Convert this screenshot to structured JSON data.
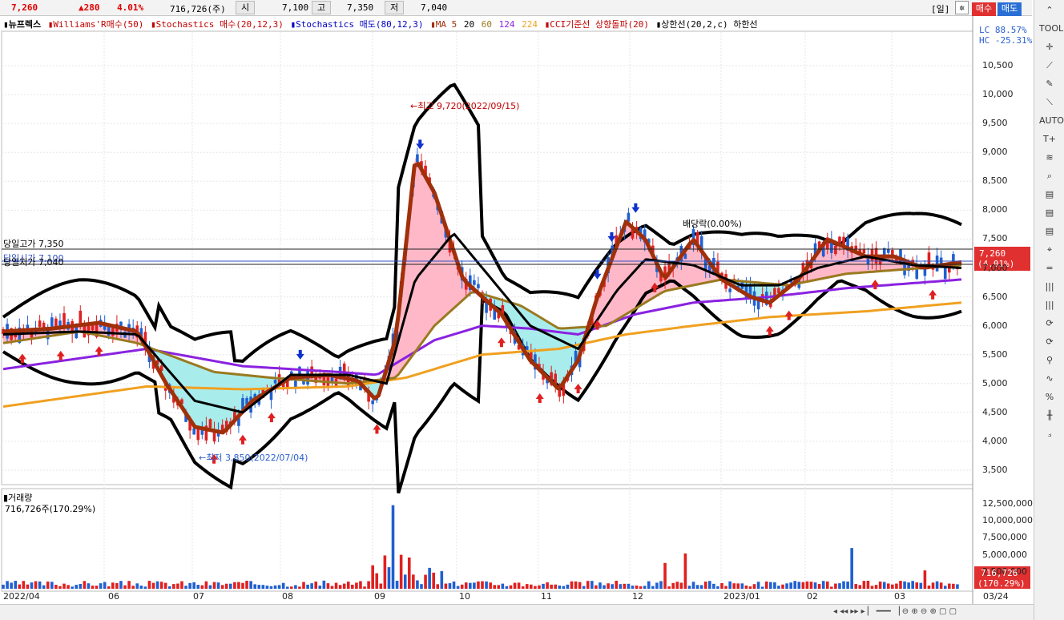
{
  "quote": {
    "price": "7,260",
    "change": "▲280",
    "change_pct": "4.01%",
    "volume": "716,726(주)",
    "open_label": "시",
    "open": "7,100",
    "high_label": "고",
    "high": "7,350",
    "low_label": "저",
    "low": "7,040"
  },
  "header_controls": {
    "period": "[일]",
    "settings_icon": "gear-icon",
    "buy_label": "매수",
    "sell_label": "매도"
  },
  "legend": {
    "stock": "▮뉴프렉스",
    "items": [
      {
        "label": "▮Williams'R매수(50)",
        "color": "#c00000"
      },
      {
        "label": "▮Stochastics 매수(20,12,3)",
        "color": "#c00000"
      },
      {
        "label": "▮Stochastics 매도(80,12,3)",
        "color": "#0000c0"
      },
      {
        "label": "▮MA 5",
        "color": "#a0300a"
      },
      {
        "label": "20",
        "color": "#000000"
      },
      {
        "label": "60",
        "color": "#9a7a20"
      },
      {
        "label": "124",
        "color": "#8a22e0"
      },
      {
        "label": "224",
        "color": "#f0a020"
      },
      {
        "label": "▮CCI기준선 상향돌파(20)",
        "color": "#c00000"
      },
      {
        "label": "▮상한선(20,2,c) 하한선",
        "color": "#000000"
      }
    ]
  },
  "price_panel": {
    "lc": "LC  88.57%",
    "hc": "HC -25.31%",
    "current_price": "7,260",
    "current_pct": "(4.01%)",
    "day_high_label": "당일고가 7,350",
    "day_open_label": "당일시가 7,100",
    "day_low_label": "당일저가 7,040",
    "max_annotation": "←최고 9,720(2022/09/15)",
    "min_annotation": "←최저 3,850(2022/07/04)",
    "dividend_annotation": "배당락(0.00%)",
    "y_ticks": [
      "10,500",
      "10,000",
      "9,500",
      "9,000",
      "8,500",
      "8,000",
      "7,500",
      "7,000",
      "6,500",
      "6,000",
      "5,500",
      "5,000",
      "4,500",
      "4,000",
      "3,500"
    ]
  },
  "volume_panel": {
    "title": "▮거래량",
    "value_label": "716,726주(170.29%)",
    "current_volume": "716,726",
    "current_pct": "(170.29%)",
    "y_ticks": [
      "12,500,000",
      "10,000,000",
      "7,500,000",
      "5,000,000",
      "2,500,000"
    ]
  },
  "x_axis": {
    "labels": [
      "2022/04",
      "06",
      "07",
      "08",
      "09",
      "10",
      "11",
      "12",
      "2023/01",
      "02",
      "03"
    ],
    "last_date": "03/24"
  },
  "toolbar": {
    "tools": [
      "chevron-up-icon",
      "TOOL",
      "crosshair-icon",
      "line-tool-icon",
      "pencil-icon",
      "ruler-icon",
      "AUTO",
      "T+",
      "fibonacci-icon",
      "search-icon",
      "chart-icon",
      "chart-icon",
      "chart-icon",
      "pin-icon",
      "=",
      "|||",
      "|||",
      "refresh-icon",
      "refresh-icon",
      "zoom-icon",
      "wave-icon",
      "%",
      "candle-icon",
      "fan-icon"
    ]
  },
  "chart_data": {
    "type": "line",
    "title": "",
    "ylim": [
      3300,
      10900
    ],
    "series": [
      {
        "name": "MA 5",
        "color": "#a0300a",
        "points": [
          [
            0,
            5900
          ],
          [
            0.05,
            5950
          ],
          [
            0.1,
            6050
          ],
          [
            0.14,
            5900
          ],
          [
            0.17,
            5000
          ],
          [
            0.2,
            4250
          ],
          [
            0.23,
            4150
          ],
          [
            0.26,
            4700
          ],
          [
            0.3,
            5100
          ],
          [
            0.34,
            5150
          ],
          [
            0.37,
            5050
          ],
          [
            0.39,
            4700
          ],
          [
            0.41,
            5800
          ],
          [
            0.43,
            8900
          ],
          [
            0.45,
            8300
          ],
          [
            0.48,
            6800
          ],
          [
            0.52,
            6200
          ],
          [
            0.55,
            5400
          ],
          [
            0.58,
            4900
          ],
          [
            0.6,
            5400
          ],
          [
            0.62,
            6500
          ],
          [
            0.65,
            7800
          ],
          [
            0.67,
            7500
          ],
          [
            0.69,
            6800
          ],
          [
            0.72,
            7500
          ],
          [
            0.75,
            6800
          ],
          [
            0.78,
            6500
          ],
          [
            0.8,
            6400
          ],
          [
            0.83,
            6800
          ],
          [
            0.86,
            7500
          ],
          [
            0.9,
            7200
          ],
          [
            0.93,
            7200
          ],
          [
            0.96,
            7000
          ],
          [
            1,
            7100
          ]
        ]
      },
      {
        "name": "20",
        "color": "#000000",
        "points": [
          [
            0,
            5850
          ],
          [
            0.08,
            5900
          ],
          [
            0.14,
            5850
          ],
          [
            0.2,
            4700
          ],
          [
            0.25,
            4500
          ],
          [
            0.3,
            5150
          ],
          [
            0.36,
            5150
          ],
          [
            0.4,
            5000
          ],
          [
            0.43,
            6800
          ],
          [
            0.47,
            7600
          ],
          [
            0.5,
            7000
          ],
          [
            0.55,
            6000
          ],
          [
            0.6,
            5600
          ],
          [
            0.64,
            6600
          ],
          [
            0.67,
            7150
          ],
          [
            0.72,
            7050
          ],
          [
            0.77,
            6700
          ],
          [
            0.81,
            6700
          ],
          [
            0.85,
            7000
          ],
          [
            0.9,
            7200
          ],
          [
            0.95,
            7050
          ],
          [
            1,
            7000
          ]
        ]
      },
      {
        "name": "60",
        "color": "#9a7a20",
        "points": [
          [
            0,
            5700
          ],
          [
            0.08,
            5900
          ],
          [
            0.14,
            5700
          ],
          [
            0.22,
            5200
          ],
          [
            0.28,
            5100
          ],
          [
            0.36,
            5000
          ],
          [
            0.41,
            5100
          ],
          [
            0.45,
            6000
          ],
          [
            0.49,
            6600
          ],
          [
            0.54,
            6350
          ],
          [
            0.58,
            5950
          ],
          [
            0.63,
            6000
          ],
          [
            0.69,
            6600
          ],
          [
            0.75,
            6800
          ],
          [
            0.82,
            6700
          ],
          [
            0.88,
            6900
          ],
          [
            1,
            7050
          ]
        ]
      },
      {
        "name": "124",
        "color": "#8a22e0",
        "points": [
          [
            0,
            5250
          ],
          [
            0.15,
            5600
          ],
          [
            0.25,
            5300
          ],
          [
            0.35,
            5200
          ],
          [
            0.39,
            5150
          ],
          [
            0.45,
            5750
          ],
          [
            0.5,
            6000
          ],
          [
            0.55,
            5950
          ],
          [
            0.6,
            5850
          ],
          [
            0.66,
            6200
          ],
          [
            0.72,
            6400
          ],
          [
            0.8,
            6500
          ],
          [
            0.88,
            6650
          ],
          [
            1,
            6800
          ]
        ]
      },
      {
        "name": "224",
        "color": "#f0a020",
        "points": [
          [
            0,
            4600
          ],
          [
            0.15,
            4950
          ],
          [
            0.25,
            4900
          ],
          [
            0.36,
            4950
          ],
          [
            0.42,
            5100
          ],
          [
            0.5,
            5500
          ],
          [
            0.58,
            5600
          ],
          [
            0.65,
            5850
          ],
          [
            0.72,
            6000
          ],
          [
            0.8,
            6150
          ],
          [
            0.9,
            6250
          ],
          [
            1,
            6400
          ]
        ]
      }
    ]
  }
}
